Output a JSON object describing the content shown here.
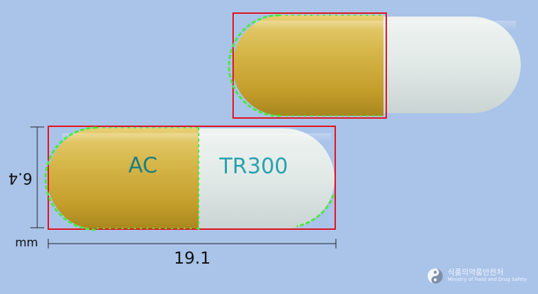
{
  "capsule_front": {
    "imprint_left": "AC",
    "imprint_right": "TR300",
    "cap_color": "#c9a93a",
    "body_color": "#dde6e6",
    "imprint_color": "#1f8e95"
  },
  "capsule_back": {
    "cap_color": "#c9a93a",
    "body_color": "#dde6e6"
  },
  "annotations": {
    "box_color": "#e3101a",
    "outline_color": "#4be83a"
  },
  "dimensions": {
    "length": "19.1",
    "width": "6.4",
    "unit": "mm"
  },
  "logo": {
    "korean": "식품의약품안전처",
    "english": "Ministry of Food and Drug Safety"
  }
}
